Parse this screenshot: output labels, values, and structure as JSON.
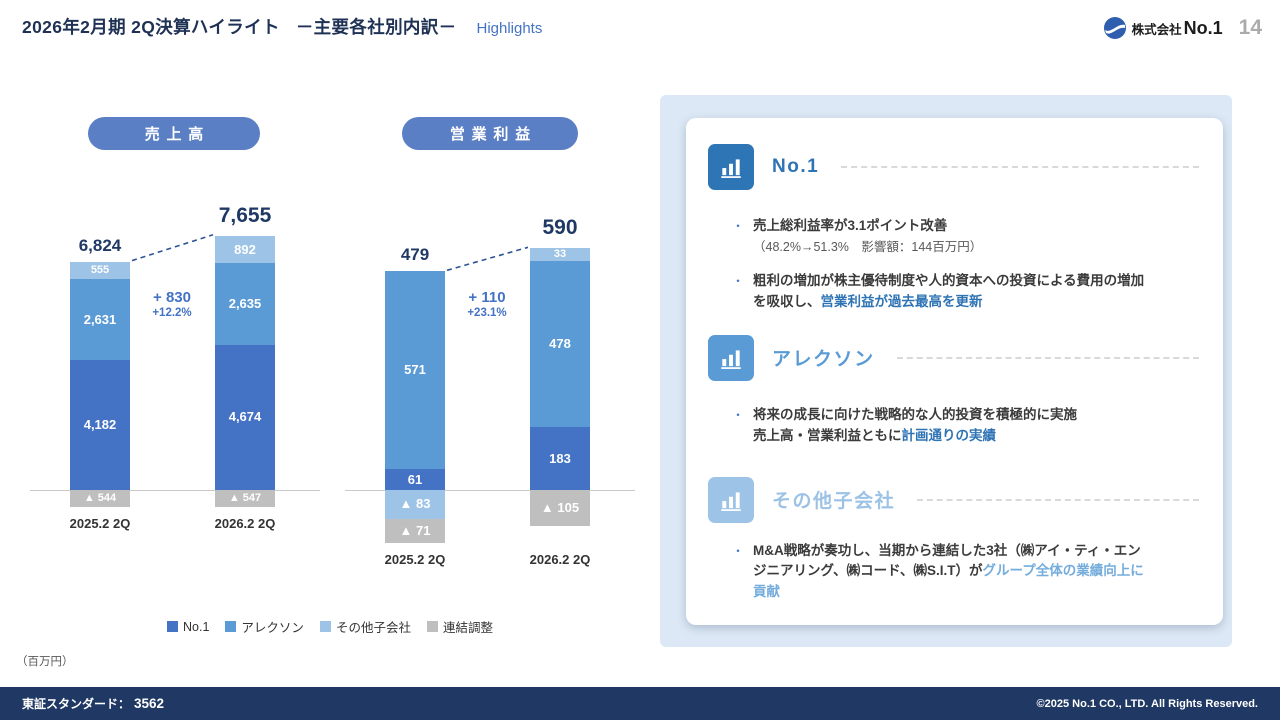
{
  "header": {
    "title_main": "2026年2月期 2Q決算ハイライト",
    "title_sub": "－主要各社別内訳－",
    "highlights_label": "Highlights",
    "company_prefix": "株式会社",
    "company_name": "No.1",
    "page_number": "14"
  },
  "charts": {
    "unit_note": "（百万円）",
    "legend": [
      {
        "label": "No.1",
        "color": "#4472C4"
      },
      {
        "label": "アレクソン",
        "color": "#5B9BD5"
      },
      {
        "label": "その他子会社",
        "color": "#9DC3E6"
      },
      {
        "label": "連結調整",
        "color": "#BFBFBF"
      }
    ]
  },
  "chart_data": [
    {
      "type": "bar",
      "stacked": true,
      "title": "売上高",
      "unit": "百万円",
      "categories": [
        "2025.2 2Q",
        "2026.2 2Q"
      ],
      "series": [
        {
          "name": "No.1",
          "values": [
            4182,
            4674
          ]
        },
        {
          "name": "アレクソン",
          "values": [
            2631,
            2635
          ]
        },
        {
          "name": "その他子会社",
          "values": [
            555,
            892
          ]
        },
        {
          "name": "連結調整",
          "values": [
            -544,
            -547
          ]
        }
      ],
      "totals": [
        6824,
        7655
      ],
      "change": {
        "value": "+ 830",
        "percent": "+12.2%"
      }
    },
    {
      "type": "bar",
      "stacked": true,
      "title": "営業利益",
      "unit": "百万円",
      "categories": [
        "2025.2 2Q",
        "2026.2 2Q"
      ],
      "series": [
        {
          "name": "No.1",
          "values": [
            61,
            183
          ]
        },
        {
          "name": "アレクソン",
          "values": [
            571,
            478
          ]
        },
        {
          "name": "その他子会社",
          "values": [
            -83,
            33
          ]
        },
        {
          "name": "連結調整",
          "values": [
            -71,
            -105
          ]
        }
      ],
      "totals": [
        479,
        590
      ],
      "change": {
        "value": "+ 110",
        "percent": "+23.1%"
      }
    }
  ],
  "panel": {
    "sections": [
      {
        "heading": "No.1",
        "bullets": [
          {
            "text": "売上総利益率が3.1ポイント改善",
            "sub": "（48.2%→51.3%　影響額：144百万円）"
          },
          {
            "text": "粗利の増加が株主優待制度や人的資本への投資による費用の増加を吸収し、",
            "highlight": "営業利益が過去最高を更新"
          }
        ]
      },
      {
        "heading": "アレクソン",
        "bullets": [
          {
            "text": "将来の成長に向けた戦略的な人的投資を積極的に実施",
            "line2": "売上高・営業利益ともに",
            "highlight": "計画通りの実績"
          }
        ]
      },
      {
        "heading": "その他子会社",
        "bullets": [
          {
            "text": "M&A戦略が奏功し、当期から連結した3社（㈱アイ・ティ・エンジニアリング、㈱コード、㈱S.I.T）が",
            "highlight": "グループ全体の業績向上に貢献"
          }
        ]
      }
    ]
  },
  "footer": {
    "exchange_label": "東証スタンダード：",
    "ticker": "3562",
    "copyright": "©2025 No.1 CO., LTD. All Rights Reserved."
  }
}
